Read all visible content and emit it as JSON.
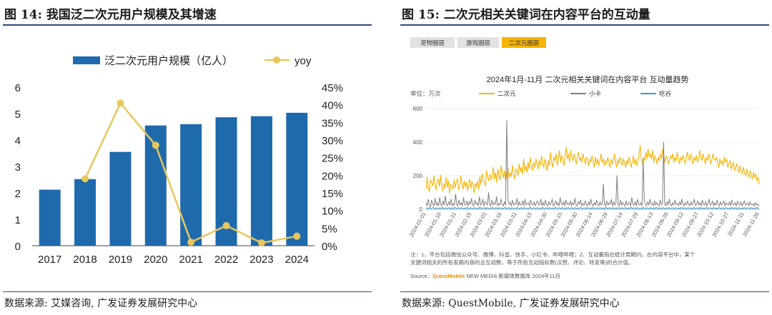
{
  "left": {
    "title": "图 14: 我国泛二次元用户规模及其增速",
    "source": "数据来源: 艾媒咨询, 广发证券发展研究中心"
  },
  "right": {
    "title": "图 15: 二次元相关关键词在内容平台的互动量",
    "source": "数据来源: QuestMobile, 广发证券发展研究中心"
  },
  "chart_data": [
    {
      "type": "bar",
      "categories": [
        "2017",
        "2018",
        "2019",
        "2020",
        "2021",
        "2022",
        "2023",
        "2024"
      ],
      "series": [
        {
          "name": "泛二次元用户规模（亿人）",
          "type": "bar",
          "axis": "left",
          "values": [
            2.12,
            2.52,
            3.55,
            4.55,
            4.6,
            4.86,
            4.9,
            5.03
          ],
          "color": "#1f6aad"
        },
        {
          "name": "yoy",
          "type": "line",
          "axis": "right",
          "values": [
            null,
            19.0,
            40.5,
            28.5,
            1.0,
            5.7,
            0.8,
            2.7
          ],
          "color": "#e8c75c"
        }
      ],
      "yticks_left": [
        "0",
        "1",
        "2",
        "3",
        "4",
        "5",
        "6"
      ],
      "yticks_right": [
        "0%",
        "5%",
        "10%",
        "15%",
        "20%",
        "25%",
        "30%",
        "35%",
        "40%",
        "45%"
      ],
      "ylim_left": [
        0,
        6
      ],
      "ylim_right": [
        0,
        45
      ],
      "legend": "top"
    },
    {
      "type": "line",
      "tabs": [
        "宠物圈层",
        "游戏圈层",
        "二次元圈层"
      ],
      "active_tab": "二次元圈层",
      "title": "2024年1月-11月 二次元相关关键词在内容平台 互动量趋势",
      "unit": "单位：万次",
      "legend": [
        "二次元",
        "小卡",
        "吃谷"
      ],
      "colors": [
        "#f5b400",
        "#7f7f7f",
        "#2e9bd6"
      ],
      "ylim": [
        0,
        600
      ],
      "yticks": [
        "0",
        "200",
        "400",
        "600"
      ],
      "xticks": [
        "2024-01-01",
        "2024-01-16",
        "2024-01-31",
        "2024-02-15",
        "2024-03-01",
        "2024-03-16",
        "2024-03-31",
        "2024-04-15",
        "2024-04-30",
        "2024-05-15",
        "2024-05-30",
        "2024-06-14",
        "2024-06-29",
        "2024-07-14",
        "2024-07-29",
        "2024-08-13",
        "2024-08-28",
        "2024-09-12",
        "2024-09-27",
        "2024-10-12",
        "2024-10-27",
        "2024-11-11",
        "2024-11-26"
      ],
      "note_line1": "注：1、平台包括微信公众号、微博、抖音、快手、小红书、哔哩哔哩；2、互动量指在统计周期内，在内容平台中，某个",
      "note_line2": "关键词相关的所有发稿内容的总互动数，等于所有互动指标数(点赞、评论、转发等)的合计值。",
      "source_prefix": "Source：",
      "source_brand": "QuestMobile",
      "source_rest": " NEW MEDIA 新媒体数据库 2024年11月",
      "series": [
        {
          "name": "二次元",
          "values": [
            120,
            190,
            130,
            105,
            175,
            160,
            140,
            200,
            150,
            115,
            165,
            180,
            135,
            205,
            145,
            110,
            155,
            125,
            190,
            130,
            170,
            95,
            150,
            140,
            120,
            175,
            130,
            160,
            185,
            115,
            145,
            200,
            155,
            120,
            170,
            135,
            160,
            110,
            150,
            180,
            125,
            165,
            140,
            100,
            155,
            130,
            170,
            120,
            195,
            145,
            210,
            180,
            160,
            140,
            230,
            190,
            170,
            210,
            175,
            195,
            250,
            180,
            220,
            160,
            240,
            200,
            175,
            260,
            215,
            190,
            230,
            170,
            205,
            245,
            185,
            220,
            195,
            260,
            210,
            180,
            240,
            230,
            200,
            270,
            225,
            250,
            210,
            300,
            230,
            260,
            220,
            280,
            240,
            310,
            255,
            230,
            280,
            250,
            300,
            270,
            240,
            290,
            260,
            320,
            275,
            250,
            300,
            270,
            230,
            290,
            260,
            340,
            280,
            250,
            310,
            290,
            330,
            260,
            300,
            350,
            280,
            320,
            290,
            260,
            310,
            370,
            300,
            330,
            280,
            350,
            310,
            290,
            330,
            300,
            270,
            320,
            340,
            290,
            310,
            280,
            330,
            300,
            270,
            310,
            290,
            260,
            300,
            280,
            320,
            290,
            250,
            310,
            270,
            300,
            260,
            290,
            330,
            280,
            300,
            260,
            290,
            270,
            310,
            280,
            250,
            300,
            270,
            290,
            330,
            280,
            250,
            300,
            270,
            310,
            290,
            260,
            300,
            280,
            250,
            290,
            270,
            310,
            280,
            250,
            290,
            320,
            270,
            300,
            260,
            290,
            330,
            380,
            300,
            270,
            310,
            290,
            340,
            300,
            360,
            310,
            330,
            300,
            350,
            280,
            320,
            300,
            270,
            310,
            290,
            330,
            300,
            360,
            310,
            280,
            320,
            300,
            270,
            290,
            320,
            300,
            330,
            280,
            310,
            290,
            340,
            300,
            270,
            310,
            290,
            320,
            300,
            270,
            300,
            340,
            310,
            290,
            330,
            300,
            270,
            310,
            290,
            320,
            280,
            300,
            350,
            310,
            290,
            330,
            300,
            270,
            310,
            290,
            330,
            300,
            270,
            300,
            330,
            300,
            290,
            310,
            280,
            250,
            300,
            270,
            290,
            260,
            310,
            280,
            300,
            250,
            270,
            290,
            240,
            260,
            280,
            230,
            250,
            270,
            240,
            220,
            260,
            230,
            210,
            250,
            220,
            200,
            240,
            210,
            190,
            230,
            200,
            180,
            220,
            190,
            210,
            170,
            190,
            150
          ]
        },
        {
          "name": "小卡",
          "values": [
            40,
            20,
            60,
            25,
            15,
            55,
            30,
            20,
            65,
            25,
            40,
            20,
            70,
            30,
            20,
            50,
            25,
            80,
            30,
            20,
            45,
            25,
            60,
            20,
            35,
            25,
            90,
            30,
            20,
            55,
            25,
            40,
            20,
            70,
            30,
            25,
            50,
            20,
            45,
            30,
            65,
            25,
            20,
            55,
            30,
            40,
            20,
            75,
            25,
            30,
            60,
            20,
            45,
            35,
            25,
            100,
            30,
            20,
            55,
            25,
            40,
            30,
            75,
            20,
            35,
            25,
            60,
            30,
            20,
            45,
            25,
            530,
            60,
            30,
            40,
            20,
            55,
            25,
            35,
            30,
            65,
            20,
            45,
            25,
            30,
            50,
            20,
            60,
            25,
            35,
            40,
            20,
            55,
            30,
            25,
            45,
            20,
            35,
            50,
            25,
            30,
            60,
            20,
            40,
            25,
            55,
            30,
            20,
            45,
            25,
            35,
            60,
            20,
            30,
            50,
            25,
            40,
            20,
            70,
            30,
            25,
            45,
            20,
            55,
            30,
            35,
            25,
            50,
            20,
            40,
            30,
            65,
            25,
            20,
            45,
            30,
            55,
            20,
            35,
            25,
            50,
            30,
            20,
            45,
            25,
            60,
            30,
            20,
            40,
            25,
            55,
            30,
            20,
            45,
            25,
            35,
            150,
            30,
            20,
            50,
            25,
            40,
            30,
            60,
            20,
            45,
            25,
            35,
            200,
            30,
            20,
            55,
            25,
            40,
            30,
            20,
            50,
            25,
            35,
            40,
            20,
            70,
            30,
            25,
            45,
            20,
            60,
            30,
            25,
            40,
            20,
            300,
            50,
            30,
            20,
            45,
            25,
            60,
            30,
            35,
            20,
            50,
            25,
            40,
            30,
            20,
            55,
            25,
            35,
            400,
            30,
            20,
            45,
            25,
            60,
            30,
            20,
            40,
            25,
            55,
            30,
            35,
            20,
            45,
            25,
            60,
            30,
            20,
            40,
            25,
            50,
            30,
            20,
            45,
            25,
            35,
            60,
            20,
            30,
            50,
            25,
            40,
            20,
            55,
            30,
            25,
            45,
            20,
            35,
            60,
            25,
            30,
            50,
            20,
            40,
            25,
            55,
            30,
            20,
            45,
            25,
            35,
            50,
            20,
            40,
            30,
            25,
            45,
            20,
            55,
            30,
            25,
            40,
            20,
            50,
            30,
            25,
            45,
            20,
            35,
            50,
            25,
            30,
            40,
            20,
            45,
            30,
            25,
            35,
            20,
            40,
            25,
            30,
            20
          ]
        },
        {
          "name": "吃谷",
          "values": [
            5,
            8,
            4,
            10,
            6,
            5,
            12,
            7,
            4,
            9,
            6,
            5,
            8,
            4,
            11,
            6,
            5,
            9,
            7,
            4,
            10,
            6,
            5,
            8,
            4,
            12,
            6,
            5,
            9,
            7,
            4,
            10,
            6,
            5,
            8,
            4,
            11,
            6,
            5,
            9,
            7,
            4,
            10,
            6,
            5,
            8,
            4,
            12,
            6,
            5,
            9,
            7,
            4,
            10,
            6,
            5,
            8,
            4,
            11,
            6,
            5,
            9,
            7,
            4,
            10,
            6,
            5,
            8,
            4,
            12,
            6,
            5,
            9,
            7,
            4,
            10,
            6,
            5,
            8,
            4,
            11,
            6,
            5,
            9,
            7,
            4,
            10,
            6,
            5,
            8,
            4,
            12,
            6,
            5,
            9,
            7,
            4,
            10,
            6,
            5,
            8,
            4,
            11,
            6,
            5,
            9,
            7,
            4,
            10,
            6,
            5,
            8,
            4,
            12,
            6,
            5,
            9,
            7,
            4,
            10,
            6,
            5,
            8,
            4,
            11,
            6,
            5,
            9,
            7,
            4,
            10,
            6,
            5,
            8,
            4,
            12,
            6,
            5,
            9,
            7,
            4,
            10,
            6,
            5,
            8,
            4,
            11,
            6,
            5,
            9,
            7,
            4,
            10,
            6,
            5,
            8,
            4,
            12,
            6,
            5,
            9,
            7,
            4,
            10,
            6,
            5,
            8,
            4,
            11,
            6,
            5,
            9,
            7,
            4,
            10,
            6,
            5,
            8,
            4,
            12,
            6,
            5,
            9,
            7,
            4,
            10,
            6,
            5,
            8,
            4,
            11,
            6,
            5,
            9,
            7,
            4,
            10,
            6,
            5,
            8,
            4,
            12,
            6,
            5,
            9,
            7,
            4,
            10,
            6,
            5,
            8,
            4,
            11,
            6,
            5,
            9,
            7,
            4,
            10,
            6,
            5,
            8,
            4,
            12,
            6,
            5,
            9,
            7,
            4,
            10,
            6,
            5,
            8,
            4,
            11,
            6,
            5,
            9,
            7,
            4,
            10,
            6,
            5,
            8,
            4,
            12,
            6,
            5,
            9,
            7,
            4,
            10,
            6,
            5,
            8,
            4,
            11,
            6,
            5,
            9,
            7,
            4,
            10,
            6,
            5,
            8,
            4,
            12,
            6,
            5,
            9,
            7,
            4,
            10,
            6,
            5,
            8,
            4,
            11,
            6,
            5,
            9,
            7,
            4,
            10,
            6,
            5,
            8,
            4,
            12,
            6,
            5
          ]
        }
      ]
    }
  ]
}
